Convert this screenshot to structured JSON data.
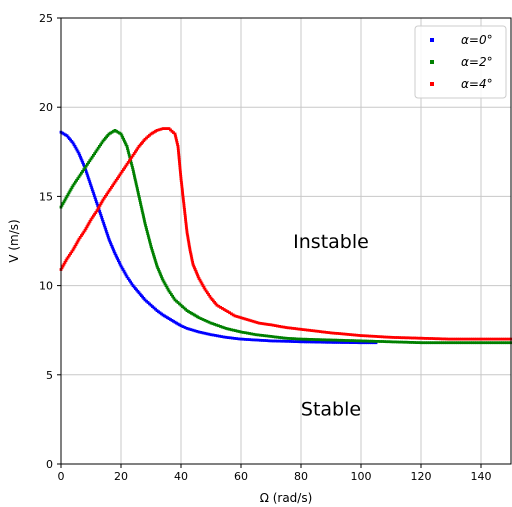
{
  "chart_data": {
    "type": "scatter",
    "xlabel": "Ω (rad/s)",
    "ylabel": "V (m/s)",
    "xlim": [
      0,
      150
    ],
    "ylim": [
      0,
      25
    ],
    "xticks": [
      0,
      20,
      40,
      60,
      80,
      100,
      120,
      140
    ],
    "yticks": [
      0,
      5,
      10,
      15,
      20,
      25
    ],
    "grid": true,
    "legend_position": "top-right",
    "series": [
      {
        "name": "α=0°",
        "color": "#0000ff",
        "points": [
          [
            0,
            18.6
          ],
          [
            2,
            18.4
          ],
          [
            4,
            18.0
          ],
          [
            6,
            17.4
          ],
          [
            8,
            16.6
          ],
          [
            10,
            15.6
          ],
          [
            12,
            14.6
          ],
          [
            14,
            13.6
          ],
          [
            16,
            12.6
          ],
          [
            18,
            11.8
          ],
          [
            20,
            11.1
          ],
          [
            22,
            10.5
          ],
          [
            24,
            10.0
          ],
          [
            26,
            9.6
          ],
          [
            28,
            9.2
          ],
          [
            30,
            8.9
          ],
          [
            32,
            8.6
          ],
          [
            34,
            8.35
          ],
          [
            36,
            8.15
          ],
          [
            38,
            7.95
          ],
          [
            40,
            7.75
          ],
          [
            42,
            7.6
          ],
          [
            44,
            7.5
          ],
          [
            46,
            7.4
          ],
          [
            50,
            7.25
          ],
          [
            55,
            7.1
          ],
          [
            60,
            7.0
          ],
          [
            65,
            6.95
          ],
          [
            70,
            6.9
          ],
          [
            75,
            6.88
          ],
          [
            80,
            6.85
          ],
          [
            90,
            6.82
          ],
          [
            100,
            6.8
          ],
          [
            105,
            6.8
          ]
        ]
      },
      {
        "name": "α=2°",
        "color": "#008000",
        "points": [
          [
            0,
            14.4
          ],
          [
            2,
            15.0
          ],
          [
            4,
            15.6
          ],
          [
            6,
            16.1
          ],
          [
            8,
            16.6
          ],
          [
            10,
            17.1
          ],
          [
            12,
            17.6
          ],
          [
            14,
            18.1
          ],
          [
            16,
            18.5
          ],
          [
            18,
            18.7
          ],
          [
            20,
            18.5
          ],
          [
            22,
            17.8
          ],
          [
            24,
            16.5
          ],
          [
            26,
            15.0
          ],
          [
            28,
            13.5
          ],
          [
            30,
            12.2
          ],
          [
            32,
            11.1
          ],
          [
            34,
            10.3
          ],
          [
            36,
            9.7
          ],
          [
            38,
            9.2
          ],
          [
            40,
            8.9
          ],
          [
            42,
            8.6
          ],
          [
            44,
            8.4
          ],
          [
            46,
            8.2
          ],
          [
            50,
            7.9
          ],
          [
            55,
            7.6
          ],
          [
            60,
            7.4
          ],
          [
            65,
            7.25
          ],
          [
            70,
            7.15
          ],
          [
            75,
            7.05
          ],
          [
            80,
            7.0
          ],
          [
            90,
            6.95
          ],
          [
            100,
            6.9
          ],
          [
            110,
            6.85
          ],
          [
            120,
            6.8
          ],
          [
            130,
            6.8
          ],
          [
            140,
            6.8
          ],
          [
            150,
            6.8
          ]
        ]
      },
      {
        "name": "α=4°",
        "color": "#ff0000",
        "points": [
          [
            0,
            10.9
          ],
          [
            2,
            11.5
          ],
          [
            4,
            12.0
          ],
          [
            6,
            12.6
          ],
          [
            8,
            13.1
          ],
          [
            10,
            13.7
          ],
          [
            12,
            14.2
          ],
          [
            14,
            14.8
          ],
          [
            16,
            15.3
          ],
          [
            18,
            15.8
          ],
          [
            20,
            16.3
          ],
          [
            22,
            16.8
          ],
          [
            24,
            17.3
          ],
          [
            26,
            17.8
          ],
          [
            28,
            18.2
          ],
          [
            30,
            18.5
          ],
          [
            32,
            18.7
          ],
          [
            34,
            18.8
          ],
          [
            36,
            18.8
          ],
          [
            38,
            18.5
          ],
          [
            39,
            17.8
          ],
          [
            40,
            16.0
          ],
          [
            41,
            14.5
          ],
          [
            42,
            13.0
          ],
          [
            43,
            12.0
          ],
          [
            44,
            11.2
          ],
          [
            46,
            10.4
          ],
          [
            48,
            9.8
          ],
          [
            50,
            9.3
          ],
          [
            52,
            8.9
          ],
          [
            55,
            8.6
          ],
          [
            58,
            8.3
          ],
          [
            62,
            8.1
          ],
          [
            66,
            7.9
          ],
          [
            70,
            7.8
          ],
          [
            75,
            7.65
          ],
          [
            80,
            7.55
          ],
          [
            85,
            7.45
          ],
          [
            90,
            7.35
          ],
          [
            100,
            7.2
          ],
          [
            110,
            7.1
          ],
          [
            120,
            7.05
          ],
          [
            130,
            7.0
          ],
          [
            140,
            7.0
          ],
          [
            150,
            7.0
          ]
        ]
      }
    ],
    "annotations": [
      {
        "text": "Instable",
        "x": 90,
        "y": 12.5
      },
      {
        "text": "Stable",
        "x": 90,
        "y": 3.1
      }
    ]
  }
}
